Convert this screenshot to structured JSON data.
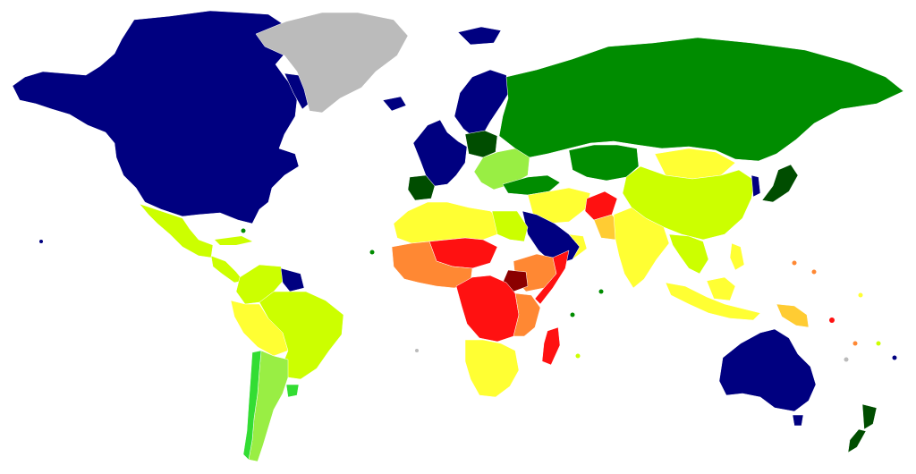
{
  "map": {
    "background": "#ffffff",
    "colors": {
      "navy": "#000080",
      "dark_green": "#004d00",
      "green": "#008c00",
      "bright_green": "#33dd33",
      "light_green": "#99ee44",
      "yellow_green": "#ccff00",
      "yellow": "#ffff33",
      "orange_yellow": "#ffcc33",
      "orange": "#ff8833",
      "red": "#ff1111",
      "dark_red": "#8b0000",
      "no_data": "#bbbbbb"
    },
    "regions": [
      {
        "name": "north-america-usa-canada",
        "color": "navy"
      },
      {
        "name": "greenland",
        "color": "no_data"
      },
      {
        "name": "mexico",
        "color": "yellow_green"
      },
      {
        "name": "central-america",
        "color": "yellow_green"
      },
      {
        "name": "colombia-venezuela",
        "color": "yellow_green"
      },
      {
        "name": "peru-bolivia",
        "color": "yellow"
      },
      {
        "name": "brazil",
        "color": "yellow_green"
      },
      {
        "name": "chile",
        "color": "bright_green"
      },
      {
        "name": "argentina",
        "color": "light_green"
      },
      {
        "name": "guianas",
        "color": "navy"
      },
      {
        "name": "scandinavia",
        "color": "navy"
      },
      {
        "name": "western-europe",
        "color": "navy"
      },
      {
        "name": "iberia",
        "color": "dark_green"
      },
      {
        "name": "central-europe",
        "color": "dark_green"
      },
      {
        "name": "eastern-europe",
        "color": "light_green"
      },
      {
        "name": "russia",
        "color": "green"
      },
      {
        "name": "central-asia",
        "color": "green"
      },
      {
        "name": "mongolia",
        "color": "yellow"
      },
      {
        "name": "china",
        "color": "yellow_green"
      },
      {
        "name": "japan",
        "color": "dark_green"
      },
      {
        "name": "korea",
        "color": "navy"
      },
      {
        "name": "turkey-caucasus",
        "color": "green"
      },
      {
        "name": "middle-east",
        "color": "yellow"
      },
      {
        "name": "arabia",
        "color": "navy"
      },
      {
        "name": "afghanistan",
        "color": "red"
      },
      {
        "name": "india",
        "color": "yellow"
      },
      {
        "name": "southeast-asia",
        "color": "yellow_green"
      },
      {
        "name": "indonesia",
        "color": "yellow"
      },
      {
        "name": "papua",
        "color": "orange_yellow"
      },
      {
        "name": "australia",
        "color": "navy"
      },
      {
        "name": "new-zealand",
        "color": "dark_green"
      },
      {
        "name": "north-africa",
        "color": "yellow"
      },
      {
        "name": "egypt",
        "color": "yellow_green"
      },
      {
        "name": "sahel",
        "color": "red"
      },
      {
        "name": "west-africa",
        "color": "orange"
      },
      {
        "name": "central-africa",
        "color": "red"
      },
      {
        "name": "south-sudan",
        "color": "dark_red"
      },
      {
        "name": "east-africa",
        "color": "orange"
      },
      {
        "name": "somalia",
        "color": "red"
      },
      {
        "name": "southern-africa",
        "color": "yellow"
      },
      {
        "name": "madagascar",
        "color": "red"
      }
    ]
  }
}
